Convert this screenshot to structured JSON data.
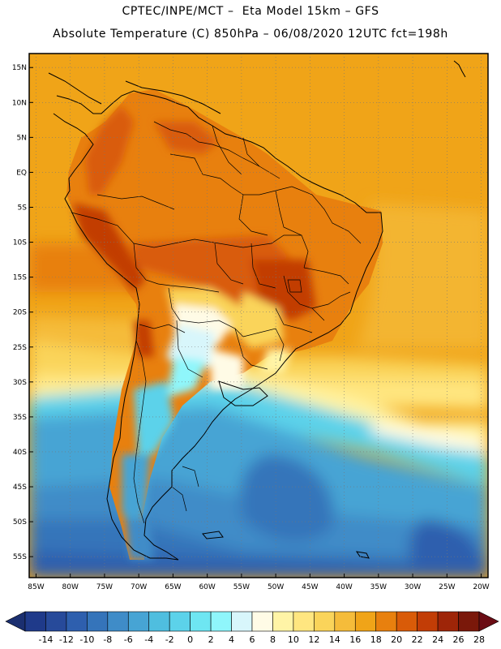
{
  "header": {
    "line1": "CPTEC/INPE/MCT –  Eta Model 15km – GFS",
    "line2": "Absolute Temperature (C) 850hPa – 06/08/2020 12UTC fct=198h"
  },
  "map": {
    "lat_labels": [
      "15N",
      "10N",
      "5N",
      "EQ",
      "5S",
      "10S",
      "15S",
      "20S",
      "25S",
      "30S",
      "35S",
      "40S",
      "45S",
      "50S",
      "55S"
    ],
    "lon_labels": [
      "85W",
      "80W",
      "75W",
      "70W",
      "65W",
      "60W",
      "55W",
      "50W",
      "45W",
      "40W",
      "35W",
      "30W",
      "25W",
      "20W"
    ],
    "lat_values": [
      15,
      10,
      5,
      0,
      -5,
      -10,
      -15,
      -20,
      -25,
      -30,
      -35,
      -40,
      -45,
      -50,
      -55
    ],
    "lon_values": [
      -85,
      -80,
      -75,
      -70,
      -65,
      -60,
      -55,
      -50,
      -45,
      -40,
      -35,
      -30,
      -25,
      -20
    ],
    "extent": {
      "lon_min": -86,
      "lon_max": -19,
      "lat_min": -58,
      "lat_max": 17
    }
  },
  "colorbar": {
    "labels": [
      "-14",
      "-12",
      "-10",
      "-8",
      "-6",
      "-4",
      "-2",
      "0",
      "2",
      "4",
      "6",
      "8",
      "10",
      "12",
      "14",
      "16",
      "18",
      "20",
      "22",
      "24",
      "26",
      "28"
    ],
    "colors": [
      "#1f3a8a",
      "#274a9a",
      "#2e5fae",
      "#3574ba",
      "#3f8cc8",
      "#47a4d4",
      "#4fbedf",
      "#5cd2ea",
      "#6ee6f2",
      "#8ff6fb",
      "#d8f6fb",
      "#fffbe6",
      "#fff4a6",
      "#ffe680",
      "#fad45a",
      "#f5bc3a",
      "#f0a418",
      "#e8800e",
      "#d95b08",
      "#c23d06",
      "#9e2508",
      "#7a180a"
    ],
    "under_color": "#1b2f70",
    "over_color": "#6b0c14"
  },
  "colors": {
    "ocean_warm": "#f0a418",
    "ocean_cold": "#2e5fae",
    "land_hot": "#d95b08",
    "border": "#000000"
  }
}
